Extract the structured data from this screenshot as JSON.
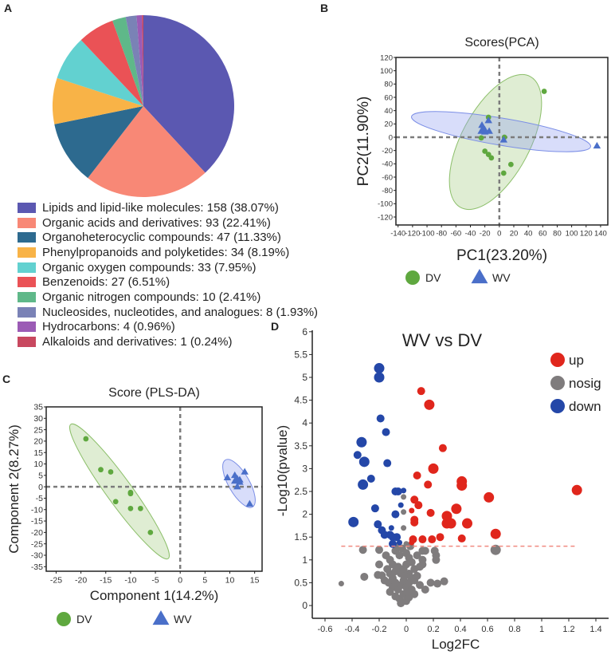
{
  "panels": {
    "a": "A",
    "b": "B",
    "c": "C",
    "d": "D"
  },
  "chart_data": [
    {
      "id": "A",
      "type": "pie",
      "legend_position": "bottom",
      "slices": [
        {
          "label": "Lipids and lipid-like molecules: 158 (38.07%)",
          "name": "Lipids and lipid-like molecules",
          "value": 158,
          "percent": 38.07,
          "color": "#5b58b1"
        },
        {
          "label": "Organic acids and derivatives: 93 (22.41%)",
          "name": "Organic acids and derivatives",
          "value": 93,
          "percent": 22.41,
          "color": "#f88876"
        },
        {
          "label": "Organoheterocyclic compounds: 47 (11.33%)",
          "name": "Organoheterocyclic compounds",
          "value": 47,
          "percent": 11.33,
          "color": "#2d6a8f"
        },
        {
          "label": "Phenylpropanoids and polyketides: 34 (8.19%)",
          "name": "Phenylpropanoids and polyketides",
          "value": 34,
          "percent": 8.19,
          "color": "#f8b347"
        },
        {
          "label": "Organic oxygen compounds: 33 (7.95%)",
          "name": "Organic oxygen compounds",
          "value": 33,
          "percent": 7.95,
          "color": "#62d1d0"
        },
        {
          "label": "Benzenoids: 27 (6.51%)",
          "name": "Benzenoids",
          "value": 27,
          "percent": 6.51,
          "color": "#ea5256"
        },
        {
          "label": "Organic nitrogen compounds: 10 (2.41%)",
          "name": "Organic nitrogen compounds",
          "value": 10,
          "percent": 2.41,
          "color": "#5fb889"
        },
        {
          "label": "Nucleosides, nucleotides, and analogues: 8 (1.93%)",
          "name": "Nucleosides, nucleotides, and analogues",
          "value": 8,
          "percent": 1.93,
          "color": "#7a82b6"
        },
        {
          "label": "Hydrocarbons: 4 (0.96%)",
          "name": "Hydrocarbons",
          "value": 4,
          "percent": 0.96,
          "color": "#9b5bb5"
        },
        {
          "label": "Alkaloids and derivatives: 1 (0.24%)",
          "name": "Alkaloids and derivatives",
          "value": 1,
          "percent": 0.24,
          "color": "#c8485f"
        }
      ]
    },
    {
      "id": "B",
      "type": "scatter",
      "title": "Scores(PCA)",
      "xlabel": "PC1(23.20%)",
      "ylabel": "PC2(11.90%)",
      "xlim": [
        -143,
        150
      ],
      "ylim": [
        -132,
        120
      ],
      "xticks": [
        -140,
        -120,
        -100,
        -80,
        -60,
        -40,
        -20,
        0,
        20,
        40,
        60,
        80,
        100,
        120,
        140
      ],
      "yticks": [
        120,
        100,
        80,
        60,
        40,
        20,
        0,
        -20,
        -40,
        -60,
        -80,
        -100,
        -120
      ],
      "legend_position": "bottom",
      "series": [
        {
          "name": "DV",
          "marker": "circle",
          "color": "#5fa83f",
          "points": [
            [
              62,
              69
            ],
            [
              -15,
              30
            ],
            [
              -25,
              -1
            ],
            [
              7,
              0
            ],
            [
              -20,
              -21
            ],
            [
              -15,
              -26
            ],
            [
              -11,
              -31
            ],
            [
              16,
              -41
            ],
            [
              6,
              -54
            ]
          ]
        },
        {
          "name": "WV",
          "marker": "triangle",
          "color": "#4a6fc9",
          "points": [
            [
              -15,
              25
            ],
            [
              -24,
              18
            ],
            [
              -22,
              13
            ],
            [
              -25,
              9
            ],
            [
              -20,
              8
            ],
            [
              -14,
              9
            ],
            [
              -20,
              11
            ],
            [
              6,
              -4
            ],
            [
              135,
              -13
            ]
          ]
        }
      ]
    },
    {
      "id": "C",
      "type": "scatter",
      "title": "Score (PLS-DA)",
      "xlabel": "Component 1(14.2%)",
      "ylabel": "Component 2(8.27%)",
      "xlim": [
        -27,
        16.5
      ],
      "ylim": [
        -37,
        35
      ],
      "xticks": [
        -25,
        -20,
        -15,
        -10,
        -5,
        0,
        5,
        10,
        15
      ],
      "yticks": [
        35,
        30,
        25,
        20,
        15,
        10,
        5,
        0,
        -5,
        -10,
        -15,
        -20,
        -25,
        -30,
        -35
      ],
      "legend_position": "bottom",
      "series": [
        {
          "name": "DV",
          "marker": "circle",
          "color": "#5fa83f",
          "points": [
            [
              -19,
              21
            ],
            [
              -16,
              7.5
            ],
            [
              -14,
              6.5
            ],
            [
              -13,
              -6.5
            ],
            [
              -10,
              -2.5
            ],
            [
              -10,
              -3
            ],
            [
              -10,
              -9.5
            ],
            [
              -8,
              -9.5
            ],
            [
              -6,
              -20
            ]
          ]
        },
        {
          "name": "WV",
          "marker": "triangle",
          "color": "#4a6fc9",
          "points": [
            [
              9.5,
              4
            ],
            [
              11,
              5
            ],
            [
              13,
              6.5
            ],
            [
              12,
              3
            ],
            [
              11,
              2.5
            ],
            [
              12,
              2
            ],
            [
              11.5,
              0
            ],
            [
              14,
              -7.5
            ],
            [
              11.5,
              3.5
            ]
          ]
        }
      ]
    },
    {
      "id": "D",
      "type": "scatter",
      "title": "WV vs DV",
      "xlabel": "Log2FC",
      "ylabel": "-Log10(pvalue)",
      "xlim": [
        -0.69,
        1.5
      ],
      "ylim": [
        -0.3,
        6
      ],
      "xticks": [
        "-0.6",
        "-0.4",
        "-0.2",
        "0",
        "0.2",
        "0.4",
        "0.6",
        "0.8",
        "1",
        "1.2",
        "1.4"
      ],
      "yticks": [
        "6",
        "5.5",
        "5",
        "4.5",
        "4",
        "3.5",
        "3",
        "2.5",
        "2",
        "1.5",
        "1",
        "0.5",
        "0"
      ],
      "threshold_y": 1.3,
      "legend_position": "top-right",
      "series": [
        {
          "name": "up",
          "color": "#e0261c",
          "points": [
            [
              0.11,
              4.7,
              2
            ],
            [
              0.17,
              4.4,
              3
            ],
            [
              0.27,
              3.45,
              2
            ],
            [
              0.2,
              3.0,
              3
            ],
            [
              0.08,
              2.85,
              2
            ],
            [
              0.16,
              2.65,
              2
            ],
            [
              0.41,
              2.72,
              3
            ],
            [
              0.41,
              2.63,
              3
            ],
            [
              1.26,
              2.53,
              3
            ],
            [
              0.61,
              2.37,
              3
            ],
            [
              0.06,
              2.32,
              2
            ],
            [
              0.09,
              2.2,
              2
            ],
            [
              0.04,
              2.08,
              1
            ],
            [
              0.37,
              2.12,
              3
            ],
            [
              0.18,
              2.03,
              2
            ],
            [
              0.3,
              1.96,
              3
            ],
            [
              0.06,
              1.88,
              2
            ],
            [
              0.06,
              1.82,
              2
            ],
            [
              0.3,
              1.8,
              3
            ],
            [
              0.33,
              1.8,
              3
            ],
            [
              0.45,
              1.8,
              3
            ],
            [
              0.66,
              1.57,
              3
            ],
            [
              0.05,
              1.45,
              2
            ],
            [
              0.12,
              1.45,
              2
            ],
            [
              0.19,
              1.45,
              2
            ],
            [
              0.25,
              1.5,
              2
            ],
            [
              0.41,
              1.47,
              2
            ],
            [
              0.04,
              1.38,
              1
            ]
          ]
        },
        {
          "name": "nosig",
          "color": "#7f7c7d",
          "points": [
            [
              -0.32,
              1.22,
              2
            ],
            [
              0.66,
              1.22,
              3
            ],
            [
              -0.48,
              0.48,
              1
            ],
            [
              -0.31,
              0.63,
              2
            ],
            [
              0.28,
              0.53,
              2
            ],
            [
              0.18,
              0.5,
              2
            ],
            [
              0.23,
              0.48,
              2
            ],
            [
              0.22,
              1.1,
              2
            ],
            [
              0.22,
              1.0,
              2
            ],
            [
              0.21,
              1.2,
              2
            ],
            [
              -0.2,
              1.22,
              2
            ],
            [
              -0.2,
              0.9,
              2
            ],
            [
              -0.21,
              0.67,
              2
            ],
            [
              -0.18,
              0.66,
              2
            ],
            [
              0.12,
              1.2,
              2
            ],
            [
              0.14,
              1.2,
              2
            ],
            [
              0.12,
              1.0,
              2
            ],
            [
              0.12,
              0.9,
              2
            ],
            [
              0.06,
              0.8,
              2
            ],
            [
              -0.02,
              2.38,
              1
            ],
            [
              -0.02,
              2.05,
              1
            ],
            [
              -0.02,
              1.7,
              1
            ],
            [
              0.0,
              1.35,
              1
            ],
            [
              -0.15,
              1.1,
              2
            ],
            [
              -0.12,
              1.0,
              2
            ],
            [
              -0.1,
              0.9,
              2
            ],
            [
              -0.08,
              1.2,
              2
            ],
            [
              -0.05,
              1.1,
              2
            ],
            [
              -0.03,
              1.25,
              2
            ],
            [
              0.0,
              1.15,
              2
            ],
            [
              0.02,
              1.05,
              2
            ],
            [
              0.04,
              0.95,
              2
            ],
            [
              0.08,
              1.1,
              2
            ],
            [
              0.1,
              0.85,
              2
            ],
            [
              -0.14,
              0.8,
              2
            ],
            [
              -0.12,
              0.7,
              2
            ],
            [
              -0.1,
              0.6,
              2
            ],
            [
              -0.08,
              0.75,
              2
            ],
            [
              -0.06,
              0.85,
              2
            ],
            [
              -0.04,
              0.7,
              2
            ],
            [
              -0.02,
              0.8,
              2
            ],
            [
              0.0,
              0.9,
              2
            ],
            [
              0.02,
              0.7,
              2
            ],
            [
              0.04,
              0.6,
              2
            ],
            [
              0.06,
              0.55,
              2
            ],
            [
              0.08,
              0.65,
              2
            ],
            [
              -0.13,
              0.5,
              2
            ],
            [
              -0.1,
              0.4,
              2
            ],
            [
              -0.08,
              0.5,
              2
            ],
            [
              -0.06,
              0.35,
              2
            ],
            [
              -0.04,
              0.45,
              2
            ],
            [
              -0.02,
              0.55,
              2
            ],
            [
              0.0,
              0.4,
              2
            ],
            [
              0.02,
              0.5,
              2
            ],
            [
              0.04,
              0.35,
              2
            ],
            [
              0.06,
              0.25,
              2
            ],
            [
              -0.08,
              0.2,
              2
            ],
            [
              -0.05,
              0.15,
              2
            ],
            [
              -0.02,
              0.25,
              2
            ],
            [
              0.0,
              0.1,
              2
            ],
            [
              0.02,
              0.18,
              2
            ],
            [
              -0.04,
              0.05,
              2
            ],
            [
              -0.12,
              0.3,
              2
            ],
            [
              0.1,
              0.45,
              2
            ],
            [
              0.14,
              0.35,
              2
            ],
            [
              -0.16,
              0.55,
              2
            ],
            [
              0.03,
              1.3,
              2
            ],
            [
              -0.07,
              1.3,
              2
            ],
            [
              -0.01,
              0.65,
              2
            ],
            [
              0.01,
              0.3,
              2
            ]
          ]
        },
        {
          "name": "down",
          "color": "#2447a8",
          "points": [
            [
              -0.2,
              5.2,
              3
            ],
            [
              -0.2,
              5.0,
              3
            ],
            [
              -0.19,
              4.1,
              2
            ],
            [
              -0.15,
              3.8,
              2
            ],
            [
              -0.33,
              3.58,
              3
            ],
            [
              -0.36,
              3.3,
              2
            ],
            [
              -0.31,
              3.15,
              3
            ],
            [
              -0.14,
              3.12,
              2
            ],
            [
              -0.26,
              2.78,
              2
            ],
            [
              -0.32,
              2.65,
              3
            ],
            [
              -0.08,
              2.5,
              2
            ],
            [
              -0.06,
              2.5,
              2
            ],
            [
              -0.02,
              2.52,
              1
            ],
            [
              -0.04,
              2.2,
              1
            ],
            [
              -0.23,
              2.13,
              2
            ],
            [
              -0.08,
              2.0,
              2
            ],
            [
              -0.39,
              1.83,
              3
            ],
            [
              -0.21,
              1.78,
              2
            ],
            [
              -0.18,
              1.65,
              2
            ],
            [
              -0.16,
              1.55,
              2
            ],
            [
              -0.12,
              1.55,
              2
            ],
            [
              -0.11,
              1.7,
              1
            ],
            [
              -0.07,
              1.5,
              2
            ],
            [
              -0.1,
              1.5,
              2
            ],
            [
              -0.05,
              1.38,
              1
            ],
            [
              -0.1,
              1.35,
              2
            ]
          ]
        }
      ]
    }
  ]
}
